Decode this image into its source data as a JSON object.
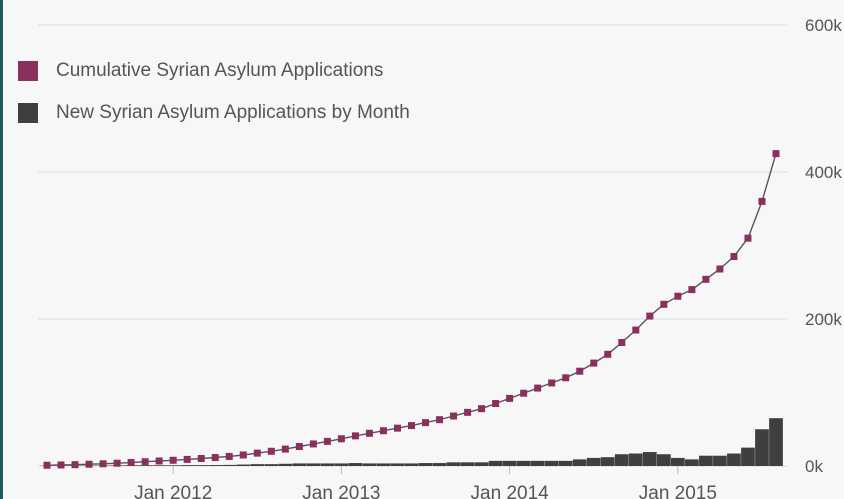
{
  "colors": {
    "cumulative": "#8b2f5e",
    "monthly": "#3f3f3f",
    "grid": "#dcdcdc",
    "line": "#555555"
  },
  "legend": [
    {
      "label": "Cumulative Syrian Asylum Applications",
      "color": "#8b2f5e"
    },
    {
      "label": "New Syrian Asylum Applications by Month",
      "color": "#3f3f3f"
    }
  ],
  "chart_data": {
    "type": "line",
    "title": "",
    "xlabel": "",
    "ylabel": "",
    "grid": true,
    "legend_position": "top-left",
    "y_axis_position": "right",
    "ylim": [
      0,
      600000
    ],
    "y_ticks": [
      {
        "value": 0,
        "label": "0k"
      },
      {
        "value": 200000,
        "label": "200k"
      },
      {
        "value": 400000,
        "label": "400k"
      },
      {
        "value": 600000,
        "label": "600k"
      }
    ],
    "x_ticks": [
      {
        "label": "Jan 2012",
        "index": 9
      },
      {
        "label": "Jan 2013",
        "index": 21
      },
      {
        "label": "Jan 2014",
        "index": 33
      },
      {
        "label": "Jan 2015",
        "index": 45
      }
    ],
    "x_start": "2011-04",
    "x_end": "2015-08",
    "series": [
      {
        "name": "Cumulative Syrian Asylum Applications",
        "type": "line",
        "values": [
          1000,
          1400,
          1800,
          2400,
          3000,
          3800,
          4800,
          5800,
          6800,
          7800,
          9000,
          10200,
          11500,
          13000,
          15000,
          17500,
          20000,
          23000,
          26500,
          30000,
          33500,
          37000,
          41000,
          44500,
          48000,
          51500,
          55000,
          59000,
          63000,
          68000,
          73000,
          78000,
          85000,
          92000,
          99000,
          106000,
          113000,
          120000,
          129000,
          140000,
          152000,
          168000,
          185000,
          204000,
          220000,
          231000,
          240000,
          254000,
          268000,
          285000,
          310000,
          360000,
          425000
        ]
      },
      {
        "name": "New Syrian Asylum Applications by Month",
        "type": "bar",
        "values": [
          400,
          400,
          400,
          600,
          600,
          800,
          1000,
          1000,
          1000,
          1000,
          1200,
          1200,
          1300,
          1500,
          2000,
          2500,
          2500,
          3000,
          3500,
          3500,
          3500,
          3500,
          4000,
          3500,
          3500,
          3500,
          3500,
          4000,
          4000,
          5000,
          5000,
          5000,
          7000,
          7000,
          7000,
          7000,
          7000,
          7000,
          9000,
          11000,
          12000,
          16000,
          17000,
          19000,
          16000,
          11000,
          9000,
          14000,
          14000,
          17000,
          25000,
          50000,
          65000
        ]
      }
    ]
  }
}
